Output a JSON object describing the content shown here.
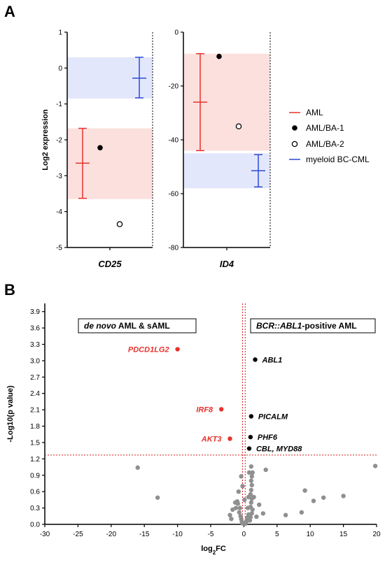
{
  "panel_a_label": "A",
  "panel_b_label": "B",
  "colors": {
    "aml": "#e8322b",
    "bc_cml": "#2b4bd6",
    "aml_band": "#fbe0de",
    "cml_band": "#e3e7fb",
    "grey_point": "#8f8f8f",
    "threshold": "#d62020"
  },
  "chart_data": [
    {
      "type": "scatter",
      "panel": "A",
      "gene": "CD25",
      "ylabel": "Log2 expression",
      "ylim": [
        -5,
        1
      ],
      "yticks": [
        -5,
        -4,
        -3,
        -2,
        -1,
        0,
        1
      ],
      "ytick_labels": [
        "-5",
        "-4",
        "-3",
        "-2",
        "-1",
        "0",
        "1"
      ],
      "aml": {
        "mean": -2.65,
        "low": -3.63,
        "high": -1.68,
        "band": [
          -3.65,
          -1.68
        ]
      },
      "bc_cml": {
        "mean": -0.28,
        "low": -0.83,
        "high": 0.3,
        "band": [
          -0.85,
          0.3
        ]
      },
      "aml_ba1": -2.22,
      "aml_ba2": -4.35
    },
    {
      "type": "scatter",
      "panel": "A",
      "gene": "ID4",
      "ylim": [
        -80,
        0
      ],
      "yticks": [
        -80,
        -60,
        -40,
        -20,
        0
      ],
      "ytick_labels": [
        "-80",
        "-60",
        "-40",
        "-20",
        "0"
      ],
      "aml": {
        "mean": -26,
        "low": -44,
        "high": -8,
        "band": [
          -44,
          -8
        ]
      },
      "bc_cml": {
        "mean": -51.5,
        "low": -57.5,
        "high": -45.5,
        "band": [
          -58,
          -45
        ]
      },
      "aml_ba1": -9,
      "aml_ba2": -35
    },
    {
      "type": "scatter",
      "panel": "B",
      "xlabel": "log",
      "xlabel_sub": "2",
      "xlabel_suffix": "FC",
      "ylabel": "-Log10(p value)",
      "xlim": [
        -30,
        20
      ],
      "ylim": [
        0,
        4.05
      ],
      "xticks": [
        -30,
        -25,
        -20,
        -15,
        -10,
        -5,
        0,
        5,
        10,
        15,
        20
      ],
      "xtick_labels": [
        "-30",
        "-25",
        "-20",
        "-15",
        "-10",
        "-5",
        "0",
        "5",
        "10",
        "15",
        "20"
      ],
      "yticks": [
        0,
        0.3,
        0.6,
        0.9,
        1.2,
        1.5,
        1.8,
        2.1,
        2.4,
        2.7,
        3.0,
        3.3,
        3.6,
        3.9
      ],
      "ytick_labels": [
        "0.0",
        "0.3",
        "0.6",
        "0.9",
        "1.2",
        "1.5",
        "1.8",
        "2.1",
        "2.4",
        "2.7",
        "3.0",
        "3.3",
        "3.6",
        "3.9"
      ],
      "threshold_y": 1.27,
      "threshold_x": [
        -0.2,
        0.2
      ],
      "box_left_italic": "de novo",
      "box_left_rest": " AML & sAML",
      "box_right_italic": "BCR::ABL1",
      "box_right_rest": "-positive AML",
      "red_points": [
        {
          "x": -10.0,
          "y": 3.21,
          "label": "PDCD1LG2"
        },
        {
          "x": -3.4,
          "y": 2.11,
          "label": "IRF8"
        },
        {
          "x": -2.1,
          "y": 1.57,
          "label": "AKT3"
        }
      ],
      "black_points": [
        {
          "x": 1.7,
          "y": 3.02,
          "label": "ABL1"
        },
        {
          "x": 1.1,
          "y": 1.98,
          "label": "PICALM"
        },
        {
          "x": 1.0,
          "y": 1.6,
          "label": "PHF6"
        },
        {
          "x": 0.8,
          "y": 1.39,
          "label": "CBL, MYD88"
        }
      ],
      "grey_points": [
        [
          -16.0,
          1.04
        ],
        [
          -13.0,
          0.49
        ],
        [
          19.8,
          1.07
        ],
        [
          15.0,
          0.52
        ],
        [
          12.0,
          0.49
        ],
        [
          10.5,
          0.43
        ],
        [
          9.2,
          0.62
        ],
        [
          8.7,
          0.22
        ],
        [
          6.3,
          0.17
        ],
        [
          3.3,
          1.0
        ],
        [
          2.9,
          0.2
        ],
        [
          2.3,
          0.36
        ],
        [
          1.9,
          0.14
        ],
        [
          1.1,
          1.06
        ],
        [
          1.3,
          0.95
        ],
        [
          1.2,
          0.88
        ],
        [
          1.1,
          0.8
        ],
        [
          1.2,
          0.72
        ],
        [
          1.1,
          0.63
        ],
        [
          1.0,
          0.55
        ],
        [
          1.2,
          0.47
        ],
        [
          1.1,
          0.4
        ],
        [
          1.0,
          0.32
        ],
        [
          1.3,
          0.27
        ],
        [
          1.2,
          0.2
        ],
        [
          1.0,
          0.13
        ],
        [
          0.9,
          0.07
        ],
        [
          0.8,
          0.95
        ],
        [
          0.7,
          0.5
        ],
        [
          0.6,
          0.3
        ],
        [
          0.7,
          0.18
        ],
        [
          0.5,
          0.12
        ],
        [
          0.4,
          0.06
        ],
        [
          0.3,
          0.03
        ],
        [
          0.2,
          0.01
        ],
        [
          -0.2,
          0.02
        ],
        [
          -0.3,
          0.05
        ],
        [
          -0.4,
          0.1
        ],
        [
          -0.5,
          0.15
        ],
        [
          -0.7,
          0.22
        ],
        [
          -0.6,
          0.3
        ],
        [
          -0.9,
          0.38
        ],
        [
          -1.0,
          0.42
        ],
        [
          -1.3,
          0.4
        ],
        [
          -1.7,
          0.27
        ],
        [
          -2.1,
          0.17
        ],
        [
          -1.9,
          0.1
        ],
        [
          -1.2,
          0.3
        ],
        [
          -0.8,
          0.6
        ],
        [
          -0.4,
          0.88
        ],
        [
          -0.2,
          0.7
        ],
        [
          0.1,
          0.45
        ],
        [
          1.5,
          0.5
        ]
      ]
    }
  ],
  "legend": [
    {
      "key": "aml",
      "label": "AML"
    },
    {
      "key": "ba1",
      "label": "AML/BA-1"
    },
    {
      "key": "ba2",
      "label": "AML/BA-2"
    },
    {
      "key": "bc_cml",
      "label": "myeloid BC-CML"
    }
  ]
}
